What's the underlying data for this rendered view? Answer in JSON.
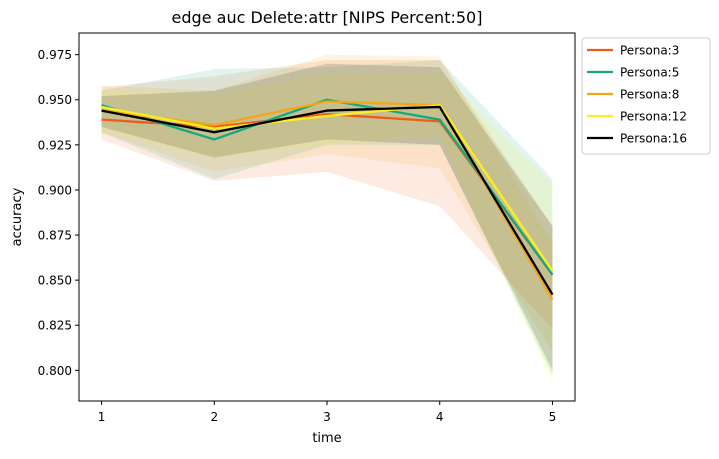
{
  "chart_data": {
    "type": "line",
    "title": "edge auc Delete:attr [NIPS Percent:50]",
    "xlabel": "time",
    "ylabel": "accuracy",
    "x": [
      1,
      2,
      3,
      4,
      5
    ],
    "xticks": [
      "1",
      "2",
      "3",
      "4",
      "5"
    ],
    "xlim": [
      0.8,
      5.2
    ],
    "ylim": [
      0.783,
      0.987
    ],
    "yticks": [
      "0.800",
      "0.825",
      "0.850",
      "0.875",
      "0.900",
      "0.925",
      "0.950",
      "0.975"
    ],
    "ytick_values": [
      0.8,
      0.825,
      0.85,
      0.875,
      0.9,
      0.925,
      0.95,
      0.975
    ],
    "grid": false,
    "legend_position": "outside right, top",
    "series": [
      {
        "name": "Persona:3",
        "color": "#f05a1a",
        "values": [
          0.939,
          0.935,
          0.942,
          0.938,
          0.853
        ],
        "lower": [
          0.928,
          0.905,
          0.91,
          0.891,
          0.823
        ],
        "upper": [
          0.957,
          0.963,
          0.972,
          0.972,
          0.88
        ]
      },
      {
        "name": "Persona:5",
        "color": "#14a97d",
        "values": [
          0.947,
          0.928,
          0.95,
          0.939,
          0.853
        ],
        "lower": [
          0.932,
          0.906,
          0.925,
          0.925,
          0.797
        ],
        "upper": [
          0.955,
          0.967,
          0.968,
          0.972,
          0.906
        ]
      },
      {
        "name": "Persona:8",
        "color": "#f2a71b",
        "values": [
          0.944,
          0.936,
          0.949,
          0.947,
          0.839
        ],
        "lower": [
          0.932,
          0.91,
          0.92,
          0.912,
          0.81
        ],
        "upper": [
          0.958,
          0.955,
          0.975,
          0.974,
          0.87
        ]
      },
      {
        "name": "Persona:12",
        "color": "#fcee21",
        "values": [
          0.946,
          0.934,
          0.941,
          0.947,
          0.855
        ],
        "lower": [
          0.933,
          0.918,
          0.925,
          0.93,
          0.793
        ],
        "upper": [
          0.955,
          0.953,
          0.965,
          0.965,
          0.903
        ]
      },
      {
        "name": "Persona:16",
        "color": "#000000",
        "values": [
          0.944,
          0.932,
          0.944,
          0.946,
          0.842
        ],
        "lower": [
          0.935,
          0.918,
          0.928,
          0.925,
          0.8
        ],
        "upper": [
          0.952,
          0.955,
          0.97,
          0.968,
          0.88
        ]
      }
    ]
  }
}
